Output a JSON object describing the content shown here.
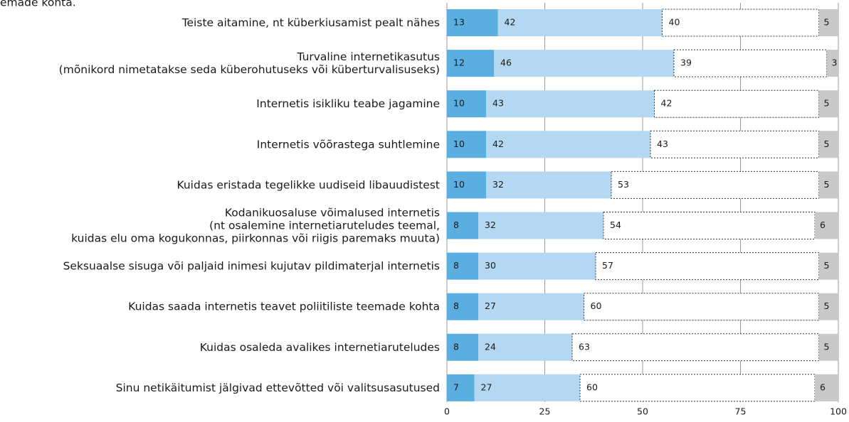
{
  "chart_data": {
    "type": "stacked-barh",
    "title": "emade kohta.",
    "categories": [
      [
        "Teiste aitamine, nt küberkiusamist pealt nähes"
      ],
      [
        "Turvaline internetikasutus",
        "(mõnikord nimetatakse seda küberohutuseks või küberturvalisuseks)"
      ],
      [
        "Internetis isikliku teabe jagamine"
      ],
      [
        "Internetis võõrastega suhtlemine"
      ],
      [
        "Kuidas eristada tegelikke uudiseid libauudistest"
      ],
      [
        "Kodanikuosaluse võimalused internetis",
        "(nt osalemine internetiaruteludes teemal,",
        "kuidas elu oma kogukonnas, piirkonnas või riigis paremaks muuta)"
      ],
      [
        "Seksuaalse sisuga või paljaid inimesi kujutav pildimaterjal internetis"
      ],
      [
        "Kuidas saada internetis teavet poliitiliste teemade kohta"
      ],
      [
        "Kuidas osaleda avalikes internetiaruteludes"
      ],
      [
        "Sinu netikäitumist jälgivad ettevõtted või valitsusasutused"
      ]
    ],
    "series": [
      {
        "color": "#5aaee0",
        "values": [
          13,
          12,
          10,
          10,
          10,
          8,
          8,
          8,
          8,
          7
        ]
      },
      {
        "color": "#b4d8f1",
        "values": [
          42,
          46,
          43,
          42,
          32,
          32,
          30,
          27,
          24,
          27
        ]
      },
      {
        "color": "#ffffff",
        "values": [
          40,
          39,
          42,
          43,
          53,
          54,
          57,
          60,
          63,
          60
        ]
      },
      {
        "color": "#c8c8c8",
        "values": [
          5,
          3,
          5,
          5,
          5,
          6,
          5,
          5,
          5,
          6
        ]
      }
    ],
    "xlim": [
      0,
      100
    ],
    "xticks": [
      0,
      25,
      50,
      75,
      100
    ],
    "grid": true
  }
}
